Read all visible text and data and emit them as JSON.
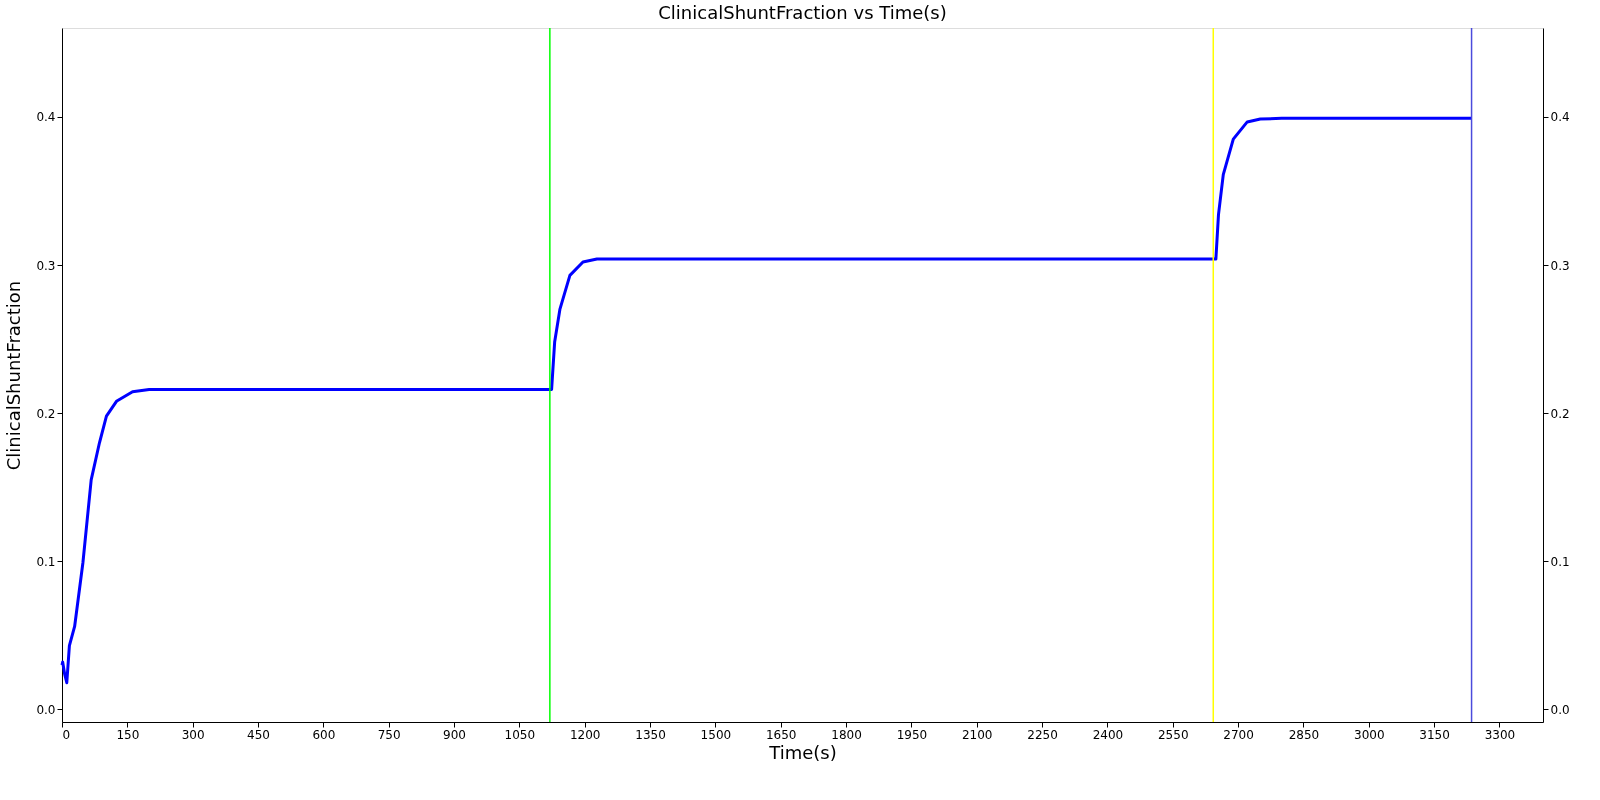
{
  "chart_data": {
    "type": "line",
    "title": "ClinicalShuntFraction vs Time(s)",
    "xlabel": "Time(s)",
    "ylabel": "ClinicalShuntFraction",
    "series": [
      {
        "color": "#0000ff",
        "x": [
          0,
          1.5,
          6,
          11,
          17,
          29,
          48,
          67,
          86,
          102,
          125,
          162,
          200,
          300,
          450,
          600,
          750,
          900,
          1050,
          1124,
          1131,
          1143,
          1166,
          1196,
          1228,
          1350,
          1500,
          1800,
          2100,
          2400,
          2649,
          2655,
          2666,
          2689,
          2721,
          2751,
          2800,
          3000,
          3236
        ],
        "values": [
          0.03,
          0.032,
          0.024,
          0.018,
          0.043,
          0.056,
          0.099,
          0.155,
          0.18,
          0.198,
          0.208,
          0.2145,
          0.216,
          0.216,
          0.216,
          0.216,
          0.216,
          0.216,
          0.216,
          0.216,
          0.248,
          0.27,
          0.293,
          0.302,
          0.304,
          0.304,
          0.304,
          0.304,
          0.304,
          0.304,
          0.304,
          0.334,
          0.361,
          0.385,
          0.3966,
          0.3986,
          0.399,
          0.399,
          0.399
        ]
      }
    ],
    "xlim": [
      0,
      3400
    ],
    "xticks": [
      0,
      150,
      300,
      450,
      600,
      750,
      900,
      1050,
      1200,
      1350,
      1500,
      1650,
      1800,
      1950,
      2100,
      2250,
      2400,
      2550,
      2700,
      2850,
      3000,
      3150,
      3300
    ],
    "ylim": [
      -0.0085,
      0.46
    ],
    "yticks": [
      {
        "value": 0,
        "label": "0.0"
      },
      0.1,
      0.2,
      0.3,
      0.4
    ],
    "y2lim": [
      -0.0085,
      0.46
    ],
    "y2ticks": [
      {
        "value": 0,
        "label": "0.0"
      },
      0.1,
      0.2,
      0.3,
      0.4
    ],
    "ref_lines": [
      {
        "axis": "x",
        "value": 1120,
        "color": "#00ff00"
      },
      {
        "axis": "x",
        "value": 2643,
        "color": "#ffff00"
      },
      {
        "axis": "x",
        "value": 3236,
        "color": "#4b4bdc"
      }
    ],
    "grid": false,
    "marker": "none",
    "line_style": "solid"
  }
}
